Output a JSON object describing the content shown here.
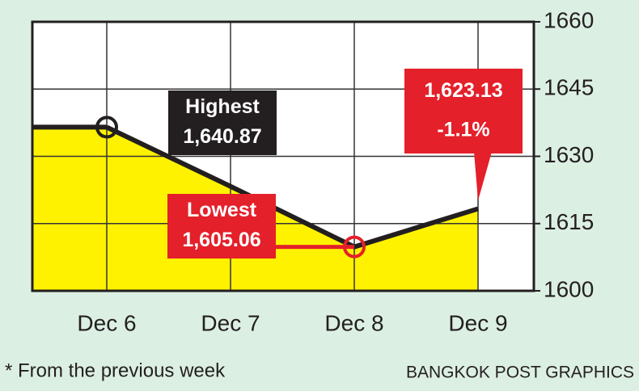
{
  "chart_data": {
    "type": "line",
    "categories": [
      "Dec 6",
      "Dec 7",
      "Dec 8",
      "Dec 9"
    ],
    "values": [
      1636.5,
      1623.3,
      1609.8,
      1618.3
    ],
    "color": "#231f20",
    "fill_color": "#fff200",
    "ylim": [
      1600,
      1660
    ],
    "yticks": [
      1600,
      1615,
      1630,
      1645,
      1660
    ],
    "grid": true,
    "annotations": [
      {
        "lines": [
          "Highest",
          "1,640.87"
        ],
        "color": "#231f20"
      },
      {
        "lines": [
          "Lowest",
          "1,605.06"
        ],
        "color": "#e4202a"
      },
      {
        "lines": [
          "1,623.13",
          "-1.1%"
        ],
        "color": "#e4202a"
      }
    ],
    "footnote": "* From the previous week",
    "source": "BANGKOK POST GRAPHICS"
  }
}
